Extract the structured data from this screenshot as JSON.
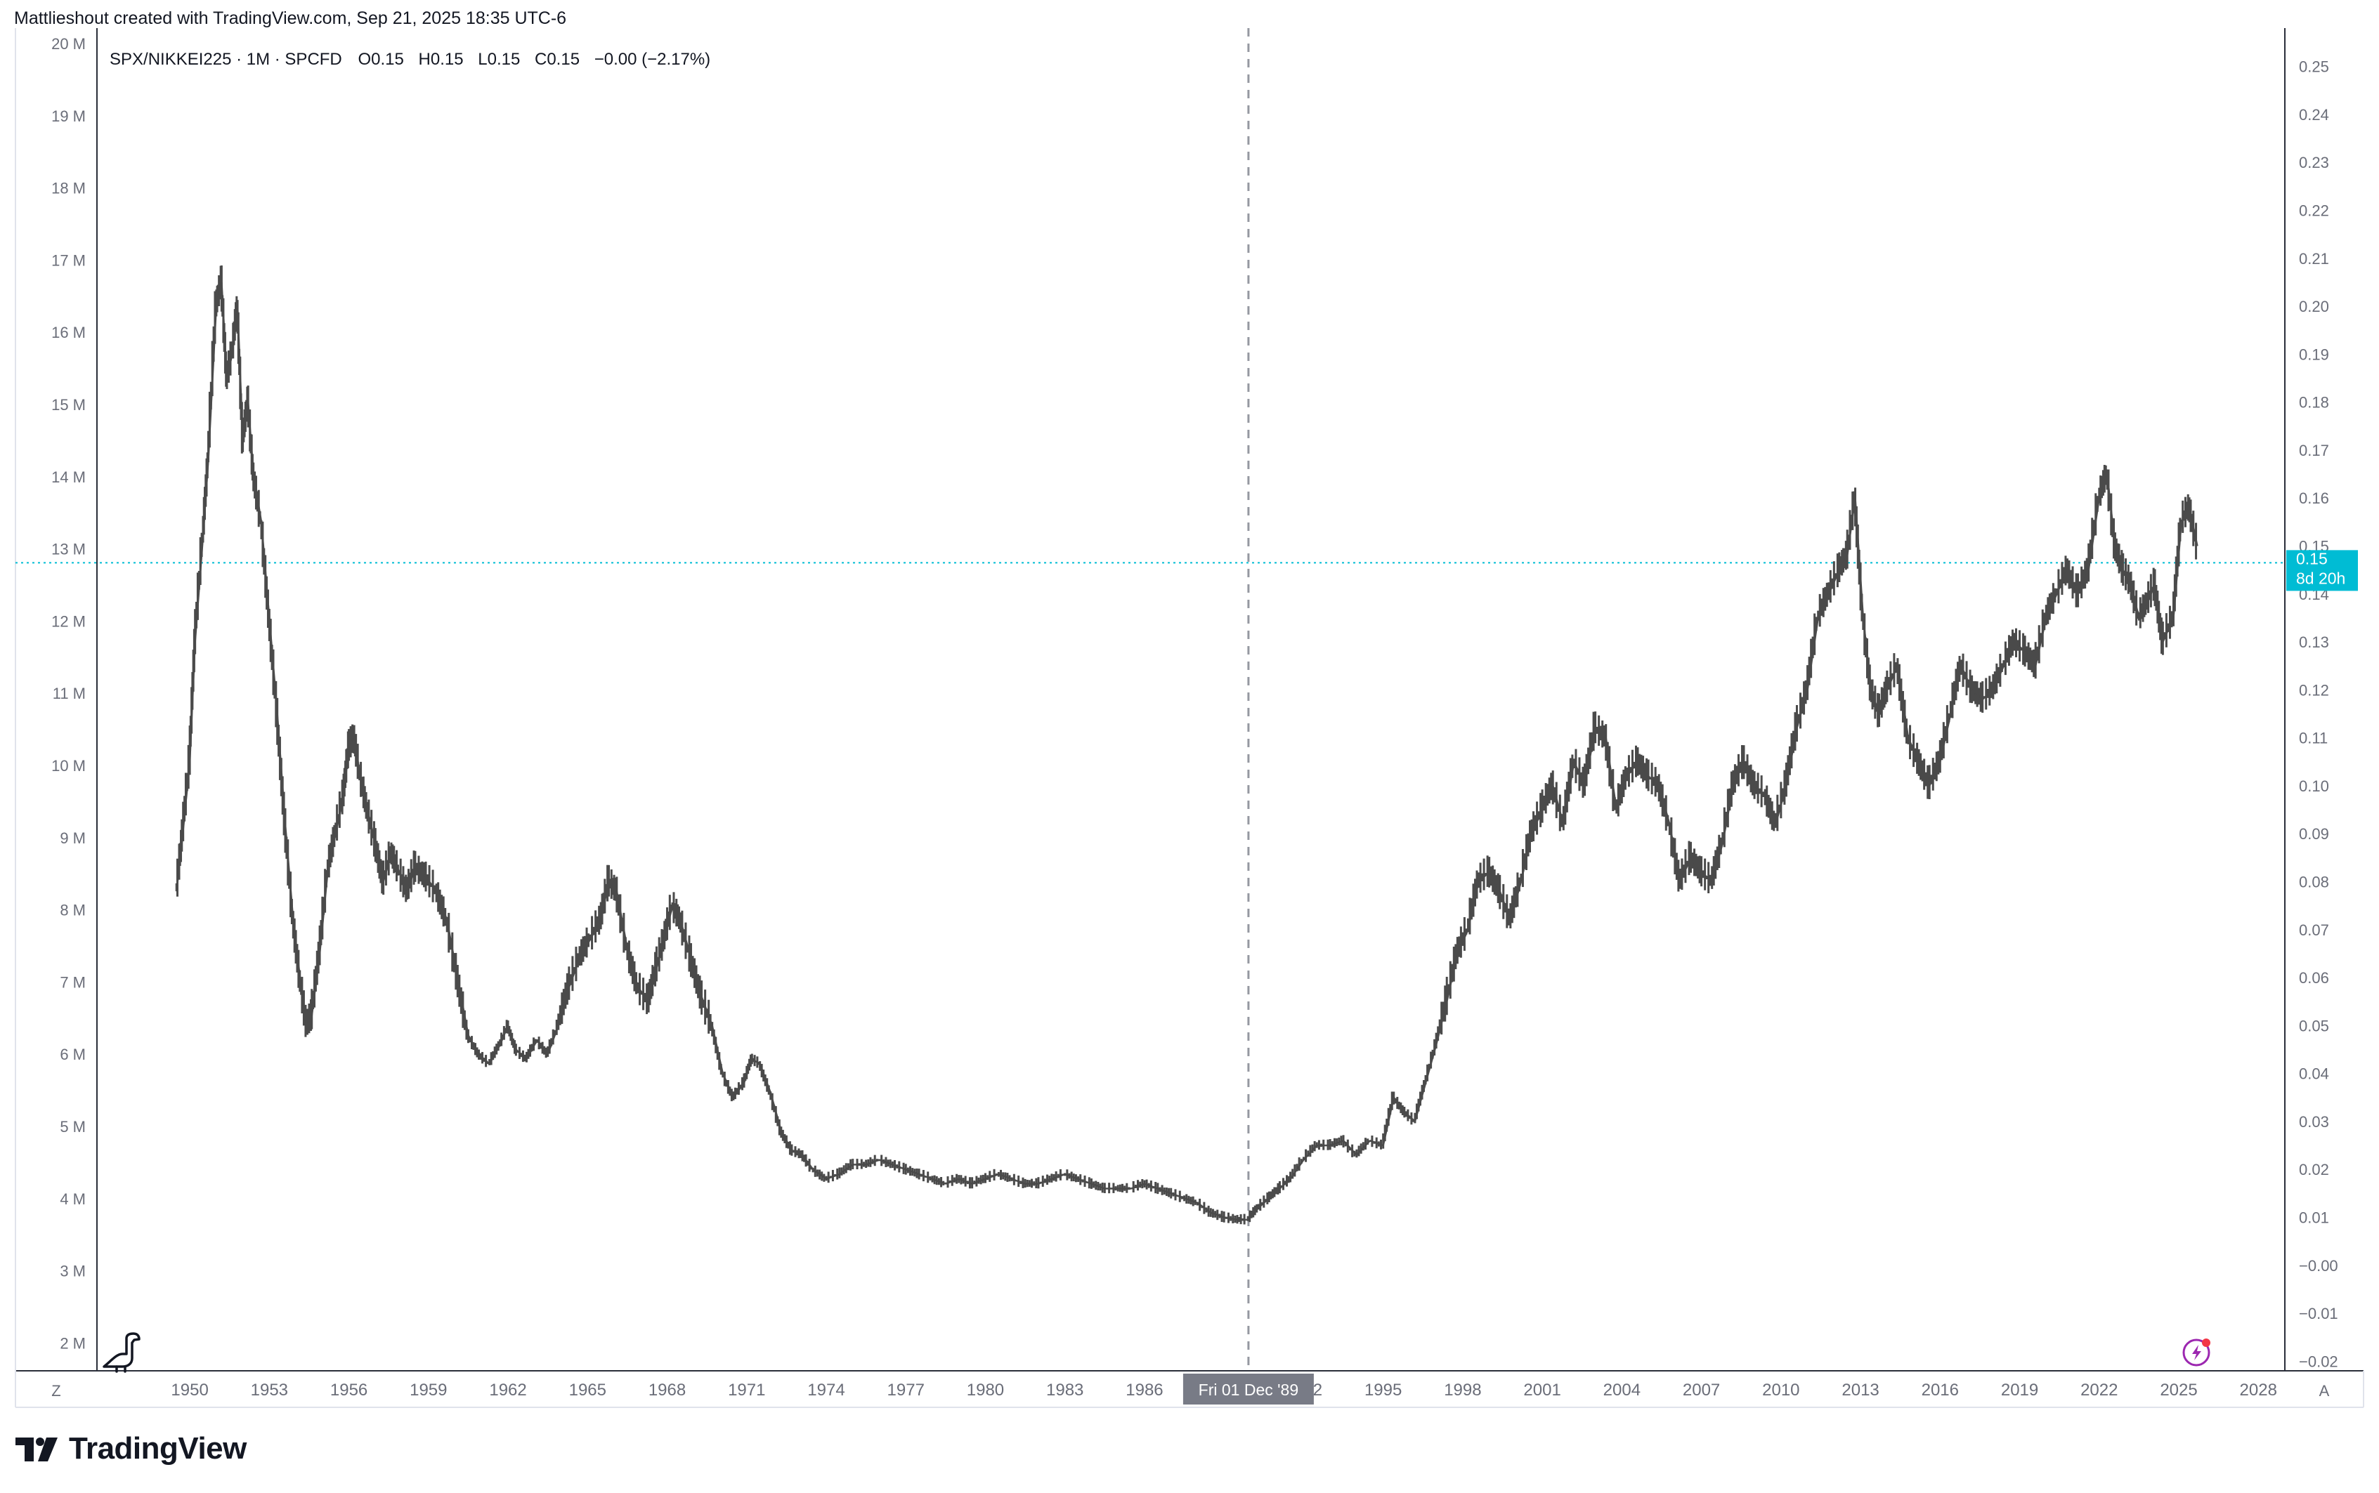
{
  "attribution": "Mattlieshout created with TradingView.com, Sep 21, 2025 18:35 UTC-6",
  "legend": {
    "symbol": "SPX/NIKKEI225 · 1M · SPCFD",
    "open_label": "O",
    "open": "0.15",
    "high_label": "H",
    "high": "0.15",
    "low_label": "L",
    "low": "0.15",
    "close_label": "C",
    "close": "0.15",
    "change": "−0.00 (−2.17%)"
  },
  "left_axis_labels": [
    "20 M",
    "19 M",
    "18 M",
    "17 M",
    "16 M",
    "15 M",
    "14 M",
    "13 M",
    "12 M",
    "11 M",
    "10 M",
    "9 M",
    "8 M",
    "7 M",
    "6 M",
    "5 M",
    "4 M",
    "3 M",
    "2 M"
  ],
  "right_axis_labels": [
    "0.25",
    "0.24",
    "0.23",
    "0.22",
    "0.21",
    "0.20",
    "0.19",
    "0.18",
    "0.17",
    "0.16",
    "0.15",
    "0.14",
    "0.13",
    "0.12",
    "0.11",
    "0.10",
    "0.09",
    "0.08",
    "0.07",
    "0.06",
    "0.05",
    "0.04",
    "0.03",
    "0.02",
    "0.01",
    "−0.00",
    "−0.01",
    "−0.02"
  ],
  "x_axis_labels": [
    "1950",
    "1953",
    "1956",
    "1959",
    "1962",
    "1965",
    "1968",
    "1971",
    "1974",
    "1977",
    "1980",
    "1983",
    "1986",
    "1989",
    "1992",
    "1995",
    "1998",
    "2001",
    "2004",
    "2007",
    "2010",
    "2013",
    "2016",
    "2019",
    "2022",
    "2025",
    "2028"
  ],
  "crosshair_label": "Fri 01 Dec '89",
  "price_tag": {
    "value": "0.15",
    "countdown": "8d 20h"
  },
  "corner_left": "Z",
  "corner_right": "A",
  "brand": "TradingView",
  "colors": {
    "line": "#4a4a4a",
    "price_tag": "#00bcd4",
    "crosshair": "#9598a1",
    "current_line": "#00bcd4",
    "axis_text": "#6a6d78"
  },
  "chart_data": {
    "type": "line",
    "title": "SPX/NIKKEI225 · 1M · SPCFD",
    "xlabel": "",
    "ylabel": "",
    "xlim": [
      1946.5,
      2029
    ],
    "ylim": [
      -0.022,
      0.258
    ],
    "current_value": 0.1465,
    "crosshair_x": 1989.92,
    "series": [
      {
        "values": [
          [
            1949.5,
            0.078
          ],
          [
            1949.7,
            0.088
          ],
          [
            1950.0,
            0.105
          ],
          [
            1950.2,
            0.13
          ],
          [
            1950.5,
            0.152
          ],
          [
            1950.7,
            0.168
          ],
          [
            1951.0,
            0.2
          ],
          [
            1951.2,
            0.205
          ],
          [
            1951.4,
            0.185
          ],
          [
            1951.6,
            0.19
          ],
          [
            1951.8,
            0.2
          ],
          [
            1952.0,
            0.172
          ],
          [
            1952.2,
            0.18
          ],
          [
            1952.4,
            0.165
          ],
          [
            1952.7,
            0.155
          ],
          [
            1953.0,
            0.135
          ],
          [
            1953.3,
            0.115
          ],
          [
            1953.6,
            0.092
          ],
          [
            1953.9,
            0.072
          ],
          [
            1954.2,
            0.058
          ],
          [
            1954.4,
            0.05
          ],
          [
            1954.6,
            0.052
          ],
          [
            1954.9,
            0.065
          ],
          [
            1955.2,
            0.082
          ],
          [
            1955.5,
            0.09
          ],
          [
            1955.8,
            0.098
          ],
          [
            1956.0,
            0.108
          ],
          [
            1956.2,
            0.11
          ],
          [
            1956.4,
            0.103
          ],
          [
            1956.7,
            0.095
          ],
          [
            1957.0,
            0.088
          ],
          [
            1957.3,
            0.08
          ],
          [
            1957.6,
            0.086
          ],
          [
            1957.9,
            0.082
          ],
          [
            1958.2,
            0.078
          ],
          [
            1958.5,
            0.083
          ],
          [
            1958.9,
            0.081
          ],
          [
            1959.3,
            0.078
          ],
          [
            1959.7,
            0.072
          ],
          [
            1960.1,
            0.06
          ],
          [
            1960.5,
            0.048
          ],
          [
            1960.9,
            0.044
          ],
          [
            1961.3,
            0.042
          ],
          [
            1961.7,
            0.046
          ],
          [
            1962.0,
            0.05
          ],
          [
            1962.3,
            0.045
          ],
          [
            1962.7,
            0.043
          ],
          [
            1963.1,
            0.047
          ],
          [
            1963.5,
            0.044
          ],
          [
            1963.9,
            0.05
          ],
          [
            1964.3,
            0.058
          ],
          [
            1964.7,
            0.064
          ],
          [
            1965.1,
            0.068
          ],
          [
            1965.5,
            0.072
          ],
          [
            1965.8,
            0.08
          ],
          [
            1966.1,
            0.078
          ],
          [
            1966.5,
            0.066
          ],
          [
            1966.9,
            0.058
          ],
          [
            1967.3,
            0.055
          ],
          [
            1967.6,
            0.062
          ],
          [
            1967.9,
            0.068
          ],
          [
            1968.2,
            0.075
          ],
          [
            1968.5,
            0.072
          ],
          [
            1968.9,
            0.064
          ],
          [
            1969.3,
            0.056
          ],
          [
            1969.7,
            0.05
          ],
          [
            1970.1,
            0.04
          ],
          [
            1970.5,
            0.035
          ],
          [
            1970.9,
            0.038
          ],
          [
            1971.2,
            0.043
          ],
          [
            1971.5,
            0.042
          ],
          [
            1971.9,
            0.036
          ],
          [
            1972.3,
            0.028
          ],
          [
            1972.7,
            0.024
          ],
          [
            1973.1,
            0.023
          ],
          [
            1973.5,
            0.02
          ],
          [
            1974.0,
            0.018
          ],
          [
            1974.5,
            0.019
          ],
          [
            1975.0,
            0.021
          ],
          [
            1975.5,
            0.021
          ],
          [
            1976.0,
            0.022
          ],
          [
            1976.5,
            0.021
          ],
          [
            1977.0,
            0.02
          ],
          [
            1977.5,
            0.019
          ],
          [
            1978.0,
            0.018
          ],
          [
            1978.5,
            0.017
          ],
          [
            1979.0,
            0.018
          ],
          [
            1979.5,
            0.017
          ],
          [
            1980.0,
            0.018
          ],
          [
            1980.5,
            0.019
          ],
          [
            1981.0,
            0.018
          ],
          [
            1981.5,
            0.017
          ],
          [
            1982.0,
            0.017
          ],
          [
            1982.5,
            0.018
          ],
          [
            1983.0,
            0.019
          ],
          [
            1983.5,
            0.018
          ],
          [
            1984.0,
            0.017
          ],
          [
            1984.5,
            0.016
          ],
          [
            1985.0,
            0.016
          ],
          [
            1985.5,
            0.016
          ],
          [
            1986.0,
            0.017
          ],
          [
            1986.5,
            0.016
          ],
          [
            1987.0,
            0.015
          ],
          [
            1987.5,
            0.014
          ],
          [
            1988.0,
            0.013
          ],
          [
            1988.5,
            0.011
          ],
          [
            1989.0,
            0.01
          ],
          [
            1989.5,
            0.0095
          ],
          [
            1989.9,
            0.0095
          ],
          [
            1990.3,
            0.012
          ],
          [
            1990.7,
            0.014
          ],
          [
            1991.1,
            0.016
          ],
          [
            1991.5,
            0.018
          ],
          [
            1992.0,
            0.022
          ],
          [
            1992.5,
            0.025
          ],
          [
            1993.0,
            0.025
          ],
          [
            1993.5,
            0.026
          ],
          [
            1994.0,
            0.023
          ],
          [
            1994.5,
            0.026
          ],
          [
            1995.0,
            0.025
          ],
          [
            1995.4,
            0.035
          ],
          [
            1995.8,
            0.032
          ],
          [
            1996.2,
            0.03
          ],
          [
            1996.6,
            0.038
          ],
          [
            1997.0,
            0.046
          ],
          [
            1997.4,
            0.055
          ],
          [
            1997.8,
            0.065
          ],
          [
            1998.2,
            0.07
          ],
          [
            1998.6,
            0.08
          ],
          [
            1999.0,
            0.082
          ],
          [
            1999.4,
            0.078
          ],
          [
            1999.8,
            0.072
          ],
          [
            2000.2,
            0.08
          ],
          [
            2000.6,
            0.09
          ],
          [
            2001.0,
            0.095
          ],
          [
            2001.4,
            0.1
          ],
          [
            2001.8,
            0.092
          ],
          [
            2002.2,
            0.105
          ],
          [
            2002.6,
            0.1
          ],
          [
            2003.0,
            0.112
          ],
          [
            2003.4,
            0.11
          ],
          [
            2003.8,
            0.095
          ],
          [
            2004.2,
            0.102
          ],
          [
            2004.6,
            0.105
          ],
          [
            2005.0,
            0.102
          ],
          [
            2005.4,
            0.1
          ],
          [
            2005.8,
            0.092
          ],
          [
            2006.2,
            0.08
          ],
          [
            2006.6,
            0.085
          ],
          [
            2007.0,
            0.082
          ],
          [
            2007.4,
            0.08
          ],
          [
            2007.8,
            0.088
          ],
          [
            2008.2,
            0.1
          ],
          [
            2008.6,
            0.105
          ],
          [
            2009.0,
            0.1
          ],
          [
            2009.4,
            0.098
          ],
          [
            2009.8,
            0.092
          ],
          [
            2010.2,
            0.1
          ],
          [
            2010.6,
            0.112
          ],
          [
            2011.0,
            0.12
          ],
          [
            2011.4,
            0.135
          ],
          [
            2011.8,
            0.14
          ],
          [
            2012.2,
            0.145
          ],
          [
            2012.5,
            0.148
          ],
          [
            2012.8,
            0.16
          ],
          [
            2013.1,
            0.135
          ],
          [
            2013.4,
            0.12
          ],
          [
            2013.7,
            0.115
          ],
          [
            2014.0,
            0.12
          ],
          [
            2014.4,
            0.125
          ],
          [
            2014.8,
            0.11
          ],
          [
            2015.2,
            0.105
          ],
          [
            2015.6,
            0.1
          ],
          [
            2016.0,
            0.105
          ],
          [
            2016.4,
            0.115
          ],
          [
            2016.8,
            0.125
          ],
          [
            2017.2,
            0.12
          ],
          [
            2017.6,
            0.118
          ],
          [
            2018.0,
            0.12
          ],
          [
            2018.4,
            0.125
          ],
          [
            2018.8,
            0.13
          ],
          [
            2019.2,
            0.128
          ],
          [
            2019.6,
            0.125
          ],
          [
            2020.0,
            0.135
          ],
          [
            2020.4,
            0.14
          ],
          [
            2020.8,
            0.145
          ],
          [
            2021.2,
            0.14
          ],
          [
            2021.6,
            0.145
          ],
          [
            2022.0,
            0.16
          ],
          [
            2022.3,
            0.165
          ],
          [
            2022.6,
            0.15
          ],
          [
            2022.9,
            0.145
          ],
          [
            2023.2,
            0.142
          ],
          [
            2023.5,
            0.135
          ],
          [
            2023.8,
            0.138
          ],
          [
            2024.1,
            0.142
          ],
          [
            2024.4,
            0.13
          ],
          [
            2024.8,
            0.135
          ],
          [
            2025.1,
            0.155
          ],
          [
            2025.4,
            0.158
          ],
          [
            2025.7,
            0.15
          ]
        ]
      }
    ]
  }
}
